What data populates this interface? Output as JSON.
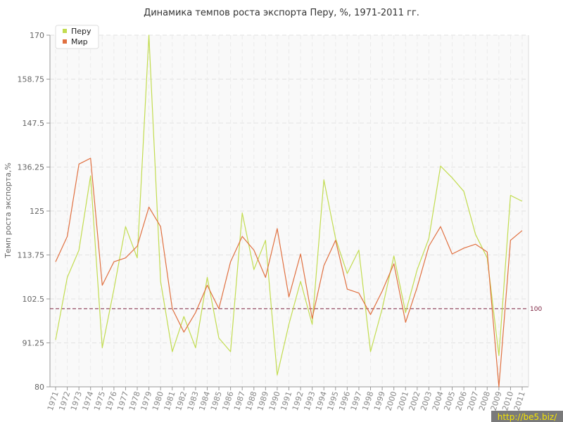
{
  "chart_data": {
    "type": "line",
    "title": "Динамика темпов роста экспорта Перу, %, 1971-2011 гг.",
    "xlabel": "",
    "ylabel": "Темп роста экспорта,%",
    "ylim": [
      80,
      170
    ],
    "yticks": [
      "80",
      "91.25",
      "102.5",
      "113.75",
      "125",
      "136.25",
      "147.5",
      "158.75",
      "170"
    ],
    "grid": true,
    "legend_position": "top-left",
    "categories": [
      "1971",
      "1972",
      "1973",
      "1974",
      "1975",
      "1976",
      "1977",
      "1978",
      "1979",
      "1980",
      "1981",
      "1982",
      "1983",
      "1984",
      "1985",
      "1986",
      "1987",
      "1988",
      "1989",
      "1990",
      "1991",
      "1992",
      "1993",
      "1994",
      "1995",
      "1996",
      "1997",
      "1998",
      "1999",
      "2000",
      "2001",
      "2002",
      "2003",
      "2004",
      "2005",
      "2006",
      "2007",
      "2008",
      "2009",
      "2010",
      "2011"
    ],
    "series": [
      {
        "name": "Перу",
        "color": "#c2dc50",
        "values": [
          92,
          108,
          115,
          134,
          90,
          105,
          121,
          113,
          170,
          107,
          89,
          98,
          90,
          108,
          92.5,
          89,
          124.5,
          110,
          117.5,
          83,
          96,
          107,
          96,
          133,
          118,
          109,
          115,
          89,
          100,
          113.5,
          99,
          110,
          118,
          136.5,
          133.5,
          130,
          119,
          113,
          88,
          129,
          127.5
        ]
      },
      {
        "name": "Мир",
        "color": "#e07040",
        "values": [
          112,
          118.5,
          137,
          138.5,
          106,
          112,
          113,
          116,
          126,
          121,
          100,
          94,
          99,
          106,
          100,
          112,
          118.5,
          115,
          108,
          120.5,
          103,
          114,
          97.5,
          111,
          117.5,
          105,
          104,
          98.5,
          104.5,
          111.5,
          96.5,
          105.5,
          116,
          121,
          114,
          115.5,
          116.5,
          114.5,
          80,
          117.5,
          120
        ]
      }
    ],
    "reference_line": {
      "value": 100,
      "label": "100",
      "color": "#7a1f3d"
    }
  },
  "watermark": {
    "text": "http://be5.biz/"
  }
}
